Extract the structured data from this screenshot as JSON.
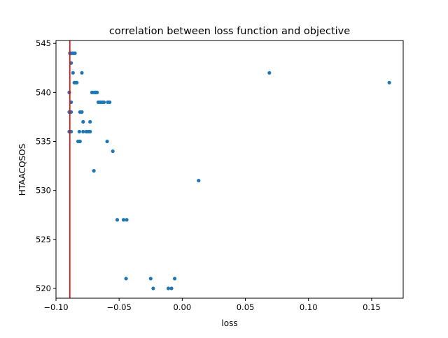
{
  "chart_data": {
    "type": "scatter",
    "title": "correlation between loss function and objective",
    "xlabel": "loss",
    "ylabel": "HTAACQSOS",
    "xlim": [
      -0.1,
      0.175
    ],
    "ylim": [
      519,
      545.3
    ],
    "xticks": [
      -0.1,
      -0.05,
      0.0,
      0.05,
      0.1,
      0.15
    ],
    "xtick_labels": [
      "−0.10",
      "−0.05",
      "0.00",
      "0.05",
      "0.10",
      "0.15"
    ],
    "yticks": [
      520,
      525,
      530,
      535,
      540,
      545
    ],
    "ytick_labels": [
      "520",
      "525",
      "530",
      "535",
      "540",
      "545"
    ],
    "grid": false,
    "marker_color": "#1f77b4",
    "vline": {
      "x": -0.089,
      "color": "#ff0000"
    },
    "points": [
      [
        -0.089,
        544
      ],
      [
        -0.088,
        544
      ],
      [
        -0.087,
        544
      ],
      [
        -0.086,
        544
      ],
      [
        -0.085,
        544
      ],
      [
        -0.088,
        543
      ],
      [
        -0.0865,
        542
      ],
      [
        -0.0795,
        542
      ],
      [
        -0.0855,
        541
      ],
      [
        -0.0845,
        541
      ],
      [
        -0.0835,
        541
      ],
      [
        -0.0895,
        540
      ],
      [
        -0.0715,
        540
      ],
      [
        -0.07,
        540
      ],
      [
        -0.0685,
        540
      ],
      [
        -0.0675,
        540
      ],
      [
        -0.088,
        539
      ],
      [
        -0.0665,
        539
      ],
      [
        -0.065,
        539
      ],
      [
        -0.0635,
        539
      ],
      [
        -0.062,
        539
      ],
      [
        -0.059,
        539
      ],
      [
        -0.0575,
        539
      ],
      [
        -0.0895,
        538
      ],
      [
        -0.088,
        538
      ],
      [
        -0.081,
        538
      ],
      [
        -0.0795,
        538
      ],
      [
        -0.0785,
        537
      ],
      [
        -0.073,
        537
      ],
      [
        -0.0895,
        536
      ],
      [
        -0.088,
        536
      ],
      [
        -0.0815,
        536
      ],
      [
        -0.0785,
        536
      ],
      [
        -0.076,
        536
      ],
      [
        -0.0745,
        536
      ],
      [
        -0.073,
        536
      ],
      [
        -0.0825,
        535
      ],
      [
        -0.081,
        535
      ],
      [
        -0.0595,
        535
      ],
      [
        -0.055,
        534
      ],
      [
        -0.07,
        532
      ],
      [
        0.013,
        531
      ],
      [
        -0.0515,
        527
      ],
      [
        -0.0465,
        527
      ],
      [
        -0.044,
        527
      ],
      [
        -0.0445,
        521
      ],
      [
        -0.025,
        521
      ],
      [
        -0.006,
        521
      ],
      [
        -0.023,
        520
      ],
      [
        -0.011,
        520
      ],
      [
        -0.0085,
        520
      ],
      [
        0.069,
        542
      ],
      [
        0.164,
        541
      ]
    ]
  }
}
